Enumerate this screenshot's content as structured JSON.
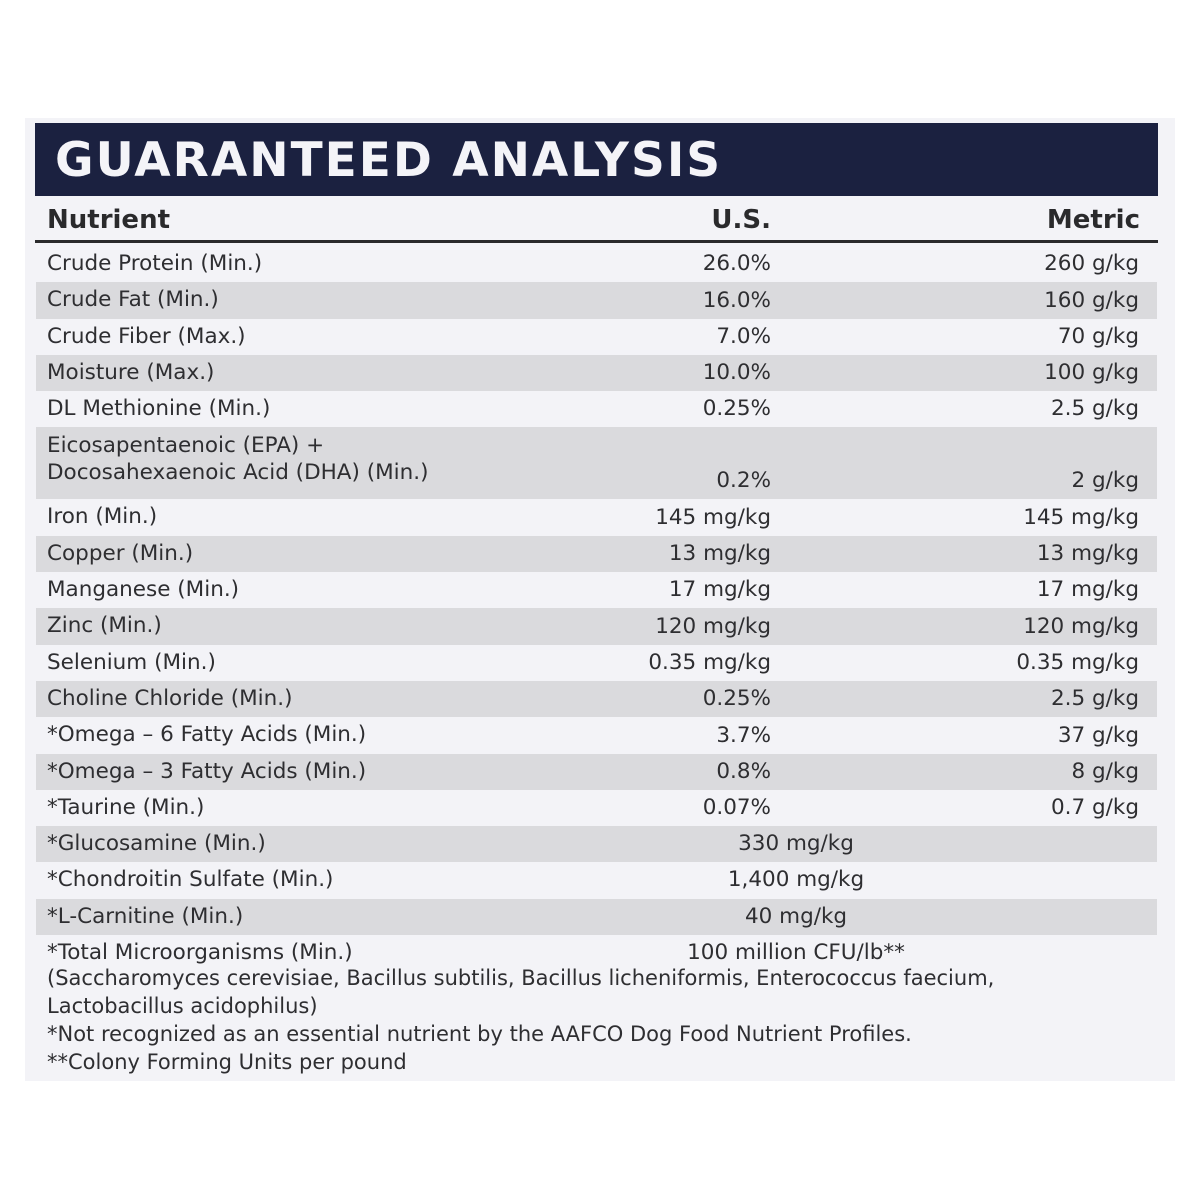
{
  "title": "GUARANTEED ANALYSIS",
  "columns": {
    "nutrient": "Nutrient",
    "us": "U.S.",
    "metric": "Metric"
  },
  "rows": [
    {
      "nutrient": "Crude Protein (Min.)",
      "us": "26.0%",
      "metric": "260 g/kg"
    },
    {
      "nutrient": "Crude Fat (Min.)",
      "us": "16.0%",
      "metric": "160 g/kg"
    },
    {
      "nutrient": "Crude Fiber (Max.)",
      "us": "7.0%",
      "metric": "70 g/kg"
    },
    {
      "nutrient": "Moisture (Max.)",
      "us": "10.0%",
      "metric": "100 g/kg"
    },
    {
      "nutrient": "DL Methionine (Min.)",
      "us": "0.25%",
      "metric": "2.5 g/kg"
    },
    {
      "nutrient_line1": "Eicosapentaenoic (EPA) +",
      "nutrient_line2": "Docosahexaenoic Acid (DHA) (Min.)",
      "us": "0.2%",
      "metric": "2 g/kg"
    },
    {
      "nutrient": "Iron (Min.)",
      "us": "145 mg/kg",
      "metric": "145 mg/kg"
    },
    {
      "nutrient": "Copper (Min.)",
      "us": "13 mg/kg",
      "metric": "13 mg/kg"
    },
    {
      "nutrient": "Manganese (Min.)",
      "us": "17 mg/kg",
      "metric": "17 mg/kg"
    },
    {
      "nutrient": "Zinc (Min.)",
      "us": "120 mg/kg",
      "metric": "120 mg/kg"
    },
    {
      "nutrient": "Selenium (Min.)",
      "us": "0.35 mg/kg",
      "metric": "0.35 mg/kg"
    },
    {
      "nutrient": "Choline Chloride (Min.)",
      "us": "0.25%",
      "metric": "2.5 g/kg"
    },
    {
      "nutrient": "*Omega – 6 Fatty Acids (Min.)",
      "us": "3.7%",
      "metric": "37 g/kg"
    },
    {
      "nutrient": "*Omega – 3 Fatty Acids (Min.)",
      "us": "0.8%",
      "metric": "8 g/kg"
    },
    {
      "nutrient": "*Taurine (Min.)",
      "us": "0.07%",
      "metric": "0.7 g/kg"
    },
    {
      "nutrient": "*Glucosamine (Min.)",
      "combined": "330 mg/kg"
    },
    {
      "nutrient": "*Chondroitin Sulfate (Min.)",
      "combined": "1,400 mg/kg"
    },
    {
      "nutrient": "*L-Carnitine (Min.)",
      "combined": "40 mg/kg"
    },
    {
      "nutrient": "*Total Microorganisms (Min.)",
      "combined": "100 million CFU/lb**"
    }
  ],
  "notes": [
    "(Saccharomyces cerevisiae, Bacillus subtilis, Bacillus licheniformis, Enterococcus faecium,",
    "Lactobacillus acidophilus)",
    "*Not recognized as an essential nutrient by the AAFCO Dog Food Nutrient Profiles.",
    "**Colony Forming Units per pound"
  ],
  "colors": {
    "title_bar": "#1b2140",
    "title_text": "#f4f4f8",
    "panel_bg": "#f3f3f7",
    "stripe": "#dadadd",
    "text": "#2e2e31"
  }
}
